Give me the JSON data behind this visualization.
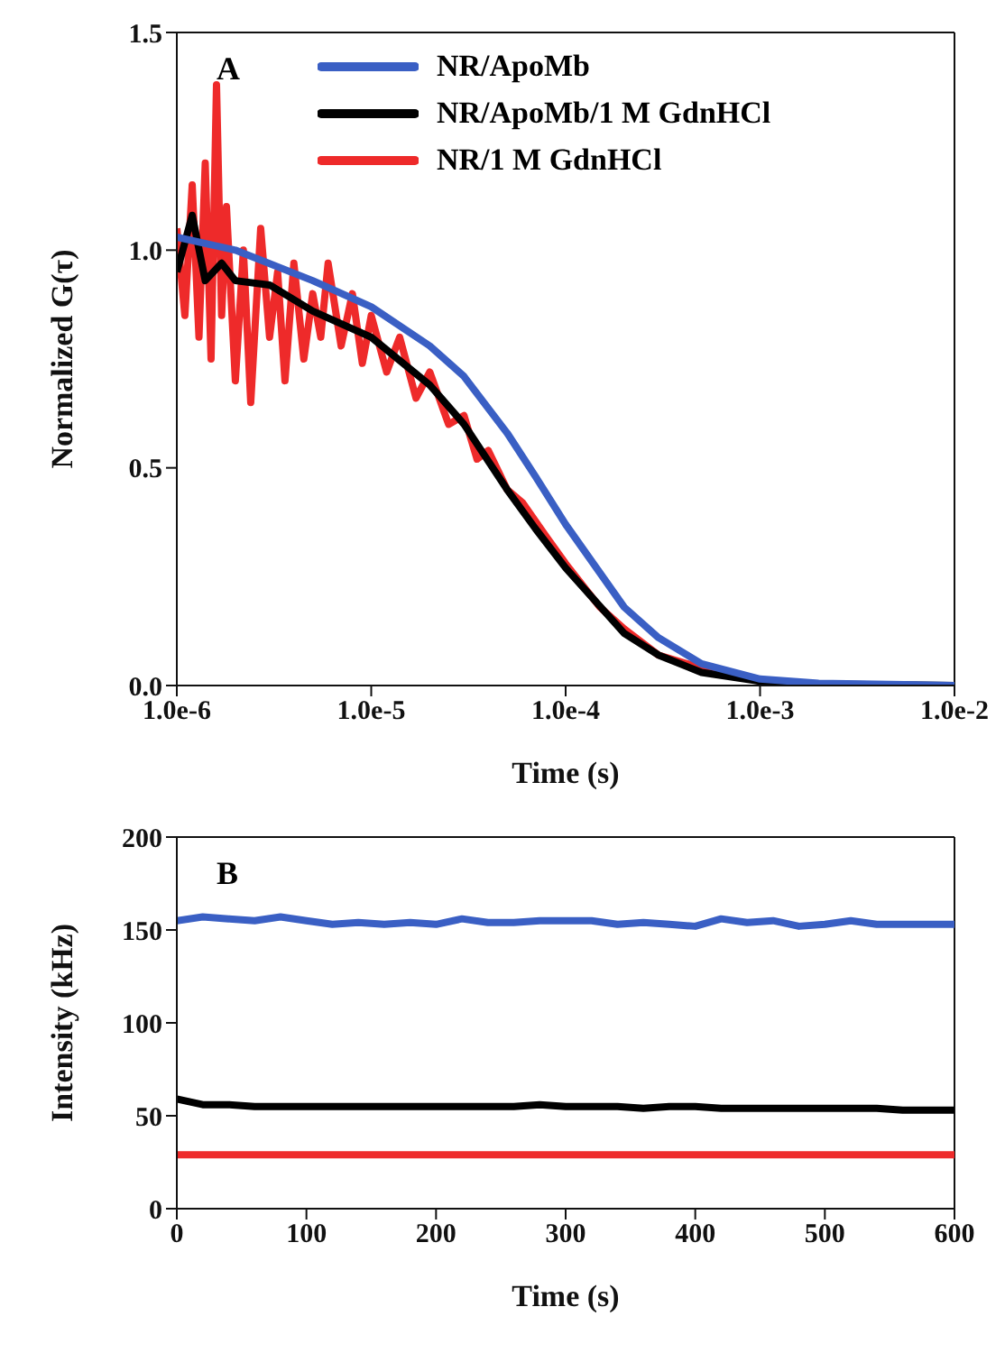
{
  "chart_data": [
    {
      "type": "line",
      "xlabel": "Time (s)",
      "ylabel": "Normalized G(τ)",
      "annotations": [
        "A"
      ],
      "log": "x",
      "legend": "top right",
      "grid": false,
      "marker": "none",
      "line_style": "solid",
      "xlim": [
        1e-06,
        0.01
      ],
      "xticks": [
        {
          "value": 1e-06,
          "label": "1.0e-6"
        },
        {
          "value": 1e-05,
          "label": "1.0e-5"
        },
        {
          "value": 0.0001,
          "label": "1.0e-4"
        },
        {
          "value": 0.001,
          "label": "1.0e-3"
        },
        {
          "value": 0.01,
          "label": "1.0e-2"
        }
      ],
      "ylim": [
        0,
        1.5
      ],
      "yticks": [
        {
          "value": 0,
          "label": "0.0"
        },
        {
          "value": 0.5,
          "label": "0.5"
        },
        {
          "value": 1,
          "label": "1.0"
        },
        {
          "value": 1.5,
          "label": "1.5"
        }
      ],
      "series": [
        {
          "name": "NR/1 M GdnHCl",
          "color": "#ee2a2a",
          "x": [
            1e-06,
            1.1e-06,
            1.2e-06,
            1.3e-06,
            1.4e-06,
            1.5e-06,
            1.6e-06,
            1.7e-06,
            1.8e-06,
            2e-06,
            2.2e-06,
            2.4e-06,
            2.7e-06,
            3e-06,
            3.3e-06,
            3.6e-06,
            4e-06,
            4.5e-06,
            5e-06,
            5.5e-06,
            6e-06,
            7e-06,
            8e-06,
            9e-06,
            1e-05,
            1.2e-05,
            1.4e-05,
            1.7e-05,
            2e-05,
            2.5e-05,
            3e-05,
            3.5e-05,
            4e-05,
            5e-05,
            6e-05,
            8e-05,
            0.0001,
            0.00015,
            0.0002,
            0.0003,
            0.0005,
            0.001
          ],
          "values": [
            1.05,
            0.85,
            1.15,
            0.8,
            1.2,
            0.75,
            1.38,
            0.85,
            1.1,
            0.7,
            1.0,
            0.65,
            1.05,
            0.8,
            0.95,
            0.7,
            0.97,
            0.75,
            0.9,
            0.8,
            0.97,
            0.78,
            0.9,
            0.74,
            0.85,
            0.72,
            0.8,
            0.66,
            0.72,
            0.6,
            0.62,
            0.52,
            0.54,
            0.45,
            0.42,
            0.34,
            0.28,
            0.18,
            0.13,
            0.07,
            0.04,
            0.01
          ]
        },
        {
          "name": "NR/ApoMb/1 M GdnHCl",
          "color": "#000000",
          "x": [
            1e-06,
            1.2e-06,
            1.4e-06,
            1.7e-06,
            2e-06,
            3e-06,
            5e-06,
            1e-05,
            2e-05,
            3e-05,
            5e-05,
            7e-05,
            0.0001,
            0.0002,
            0.0003,
            0.0005,
            0.001,
            0.002,
            0.01
          ],
          "values": [
            0.95,
            1.08,
            0.93,
            0.97,
            0.93,
            0.92,
            0.86,
            0.8,
            0.69,
            0.6,
            0.45,
            0.36,
            0.27,
            0.12,
            0.07,
            0.03,
            0.01,
            0.003,
            0
          ]
        },
        {
          "name": "NR/ApoMb",
          "color": "#3a5fc4",
          "x": [
            1e-06,
            2e-06,
            5e-06,
            1e-05,
            2e-05,
            3e-05,
            5e-05,
            7e-05,
            0.0001,
            0.0002,
            0.0003,
            0.0005,
            0.001,
            0.002,
            0.01
          ],
          "values": [
            1.03,
            1.0,
            0.93,
            0.87,
            0.78,
            0.71,
            0.58,
            0.48,
            0.37,
            0.18,
            0.11,
            0.05,
            0.015,
            0.005,
            0
          ]
        }
      ]
    },
    {
      "type": "line",
      "xlabel": "Time (s)",
      "ylabel": "Intensity (kHz)",
      "annotations": [
        "B"
      ],
      "grid": false,
      "marker": "none",
      "line_style": "solid",
      "xlim": [
        0,
        600
      ],
      "xticks": [
        0,
        100,
        200,
        300,
        400,
        500,
        600
      ],
      "ylim": [
        0,
        200
      ],
      "yticks": [
        0,
        50,
        100,
        150,
        200
      ],
      "x": [
        0,
        20,
        40,
        60,
        80,
        100,
        120,
        140,
        160,
        180,
        200,
        220,
        240,
        260,
        280,
        300,
        320,
        340,
        360,
        380,
        400,
        420,
        440,
        460,
        480,
        500,
        520,
        540,
        560,
        580,
        600
      ],
      "series": [
        {
          "color": "#3a5fc4",
          "values": [
            155,
            157,
            156,
            155,
            157,
            155,
            153,
            154,
            153,
            154,
            153,
            156,
            154,
            154,
            155,
            155,
            155,
            153,
            154,
            153,
            152,
            156,
            154,
            155,
            152,
            153,
            155,
            153,
            153,
            153,
            153
          ]
        },
        {
          "color": "#000000",
          "values": [
            59,
            56,
            56,
            55,
            55,
            55,
            55,
            55,
            55,
            55,
            55,
            55,
            55,
            55,
            56,
            55,
            55,
            55,
            54,
            55,
            55,
            54,
            54,
            54,
            54,
            54,
            54,
            54,
            53,
            53,
            53
          ]
        },
        {
          "color": "#ee2a2a",
          "values": [
            29,
            29,
            29,
            29,
            29,
            29,
            29,
            29,
            29,
            29,
            29,
            29,
            29,
            29,
            29,
            29,
            29,
            29,
            29,
            29,
            29,
            29,
            29,
            29,
            29,
            29,
            29,
            29,
            29,
            29,
            29
          ]
        }
      ]
    }
  ]
}
